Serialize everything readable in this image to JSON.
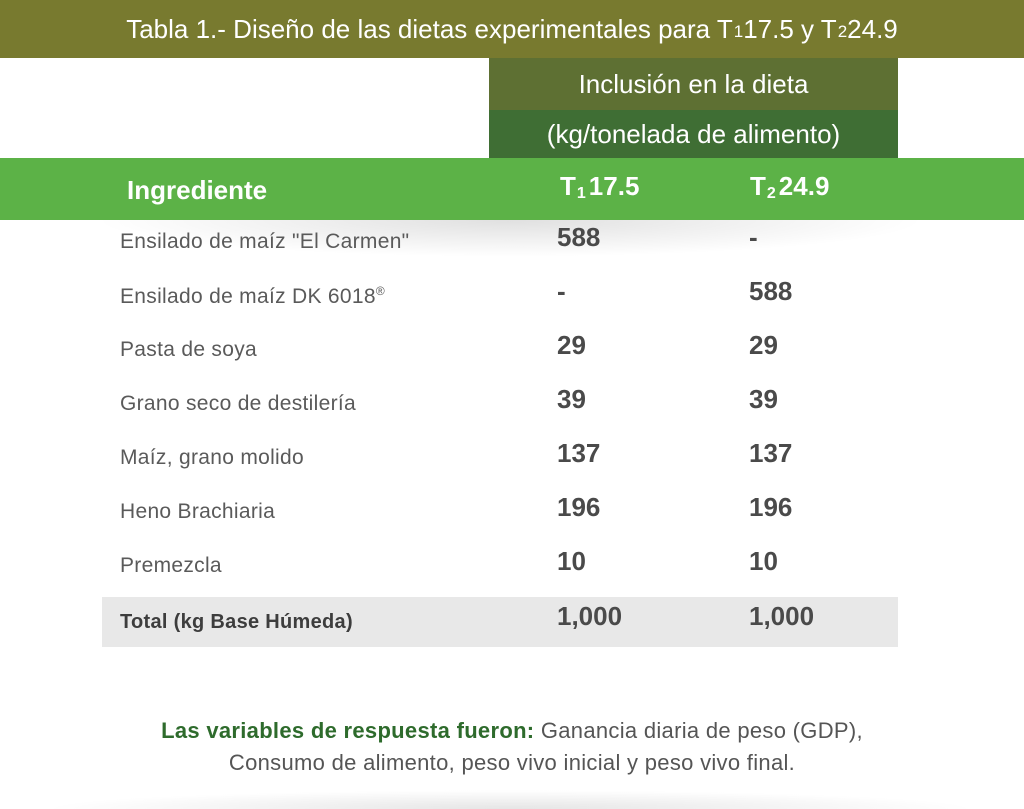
{
  "title": {
    "prefix": "Tabla 1.- Diseño de las dietas experimentales para T",
    "sub1": "1",
    "mid": " 17.5 y T",
    "sub2": "2",
    "suffix": " 24.9"
  },
  "inclusion": {
    "line1": "Inclusión en la dieta",
    "line2": "(kg/tonelada de alimento)"
  },
  "header": {
    "ingredient": "Ingrediente",
    "t1_letter": "T",
    "t1_sub": "1",
    "t1_value": "17.5",
    "t2_letter": "T",
    "t2_sub": "2",
    "t2_value": "24.9"
  },
  "rows": [
    {
      "ingredient": "Ensilado de maíz \"El Carmen\"",
      "t1": "588",
      "t2": "-"
    },
    {
      "ingredient": "Ensilado de maíz DK 6018",
      "mark": "®",
      "t1": "-",
      "t2": "588"
    },
    {
      "ingredient": "Pasta de soya",
      "t1": "29",
      "t2": "29"
    },
    {
      "ingredient": "Grano seco de destilería",
      "t1": "39",
      "t2": "39"
    },
    {
      "ingredient": "Maíz, grano molido",
      "t1": "137",
      "t2": "137"
    },
    {
      "ingredient": "Heno Brachiaria",
      "t1": "196",
      "t2": "196"
    },
    {
      "ingredient": "Premezcla",
      "t1": "10",
      "t2": "10"
    }
  ],
  "total": {
    "label": "Total (kg Base Húmeda)",
    "t1": "1,000",
    "t2": "1,000"
  },
  "footnote": {
    "lead": "Las variables de respuesta fueron:",
    "line1_rest": " Ganancia diaria de peso (GDP),",
    "line2": "Consumo de alimento, peso vivo inicial y peso vivo final."
  },
  "colors": {
    "title_bar": "#787a2f",
    "inclusion_top": "#5e7033",
    "inclusion_bottom": "#3f6e34",
    "header_bar": "#5cb247",
    "total_row": "#e8e8e8",
    "footnote_lead": "#2e6b2c"
  }
}
